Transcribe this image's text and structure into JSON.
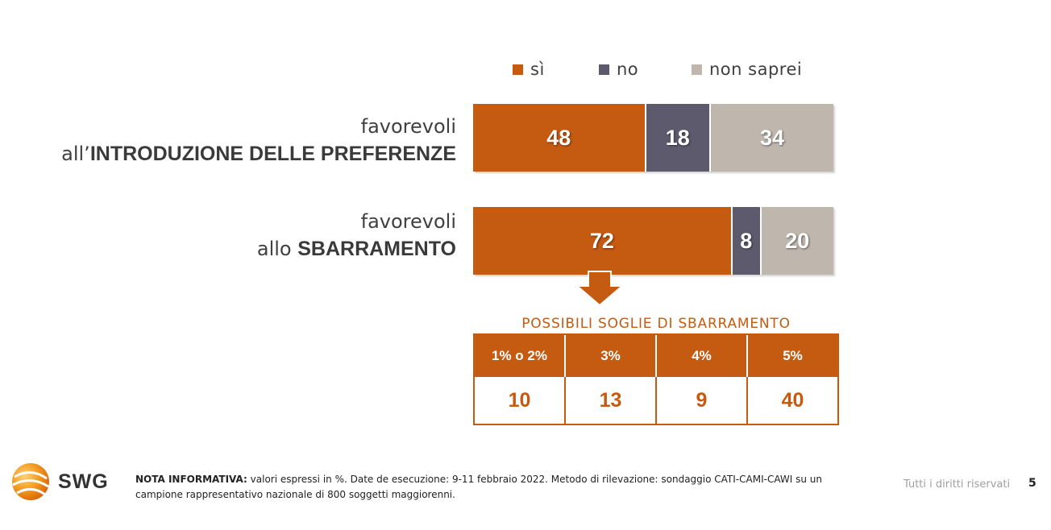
{
  "colors": {
    "si": "#c55a11",
    "no": "#5e5a6e",
    "non_saprei": "#bfb6ad",
    "accent": "#c55a11"
  },
  "chart_data": {
    "type": "bar",
    "orientation": "horizontal",
    "stacked": true,
    "legend": [
      "sì",
      "no",
      "non saprei"
    ],
    "legend_position": "top",
    "categories": [
      {
        "line1": "favorevoli",
        "prefix": "all’",
        "bold": "INTRODUZIONE DELLE PREFERENZE"
      },
      {
        "line1": "favorevoli",
        "prefix": "allo ",
        "bold": "SBARRAMENTO"
      }
    ],
    "series": [
      {
        "name": "sì",
        "values": [
          48,
          72
        ]
      },
      {
        "name": "no",
        "values": [
          18,
          8
        ]
      },
      {
        "name": "non saprei",
        "values": [
          34,
          20
        ]
      }
    ]
  },
  "thresholds": {
    "title": "POSSIBILI SOGLIE DI SBARRAMENTO",
    "headers": [
      "1% o 2%",
      "3%",
      "4%",
      "5%"
    ],
    "values": [
      "10",
      "13",
      "9",
      "40"
    ]
  },
  "footer": {
    "logo_text": "SWG",
    "note_bold": "NOTA INFORMATIVA:",
    "note_text": " valori espressi in %. Date de esecuzione: 9-11 febbraio 2022. Metodo di rilevazione: sondaggio CATI-CAMI-CAWI su un campione rappresentativo nazionale di 800 soggetti maggiorenni.",
    "rights": "Tutti i diritti riservati",
    "page": "5"
  }
}
